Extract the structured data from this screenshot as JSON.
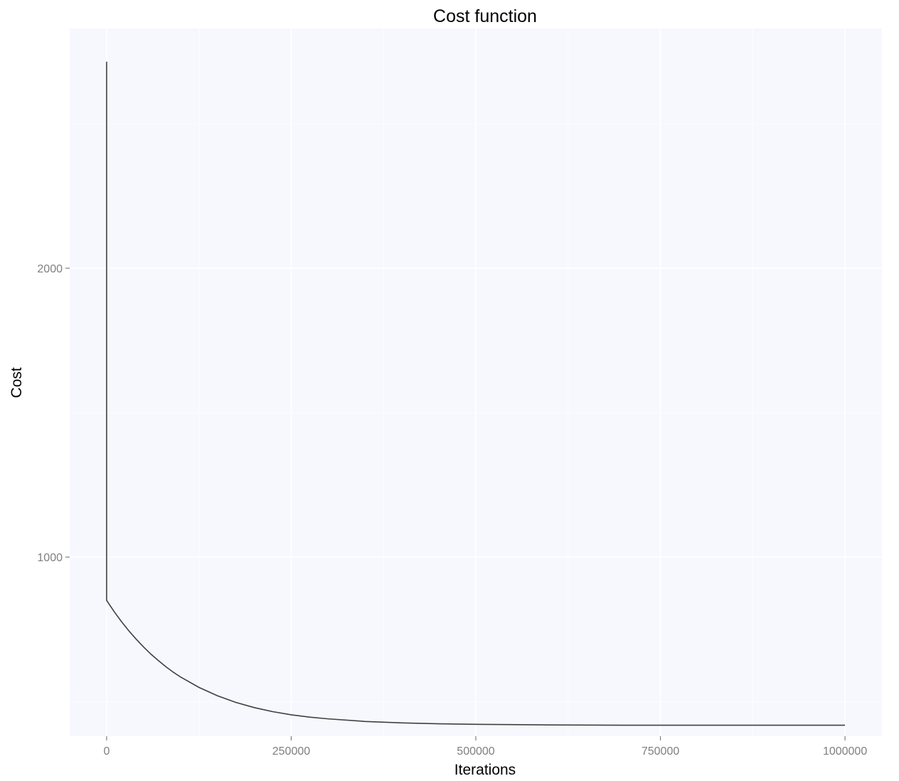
{
  "chart_data": {
    "type": "line",
    "title": "Cost function",
    "xlabel": "Iterations",
    "ylabel": "Cost",
    "xlim": [
      -50000,
      1050000
    ],
    "ylim": [
      380,
      2830
    ],
    "x_ticks": [
      0,
      250000,
      500000,
      750000,
      1000000
    ],
    "x_tick_labels": [
      "0",
      "250000",
      "500000",
      "750000",
      "1000000"
    ],
    "y_ticks": [
      1000,
      2000
    ],
    "y_tick_labels": [
      "1000",
      "2000"
    ],
    "grid": true,
    "legend": "none",
    "colors": {
      "panel": "#f7f8fe",
      "line": "#404040",
      "grid": "#ffffff",
      "tick": "#7f7f7f"
    },
    "series": [
      {
        "x": [
          0,
          0,
          10000,
          20000,
          30000,
          40000,
          50000,
          60000,
          70000,
          80000,
          90000,
          100000,
          125000,
          150000,
          175000,
          200000,
          225000,
          250000,
          275000,
          300000,
          350000,
          400000,
          450000,
          500000,
          600000,
          700000,
          800000,
          900000,
          1000000
        ],
        "y": [
          2715,
          850,
          812,
          777,
          745,
          716,
          689,
          664,
          642,
          621,
          602,
          585,
          549,
          520,
          497,
          479,
          465,
          454,
          446,
          440,
          431,
          426,
          423,
          421,
          419,
          418,
          418,
          418,
          418
        ]
      }
    ]
  }
}
